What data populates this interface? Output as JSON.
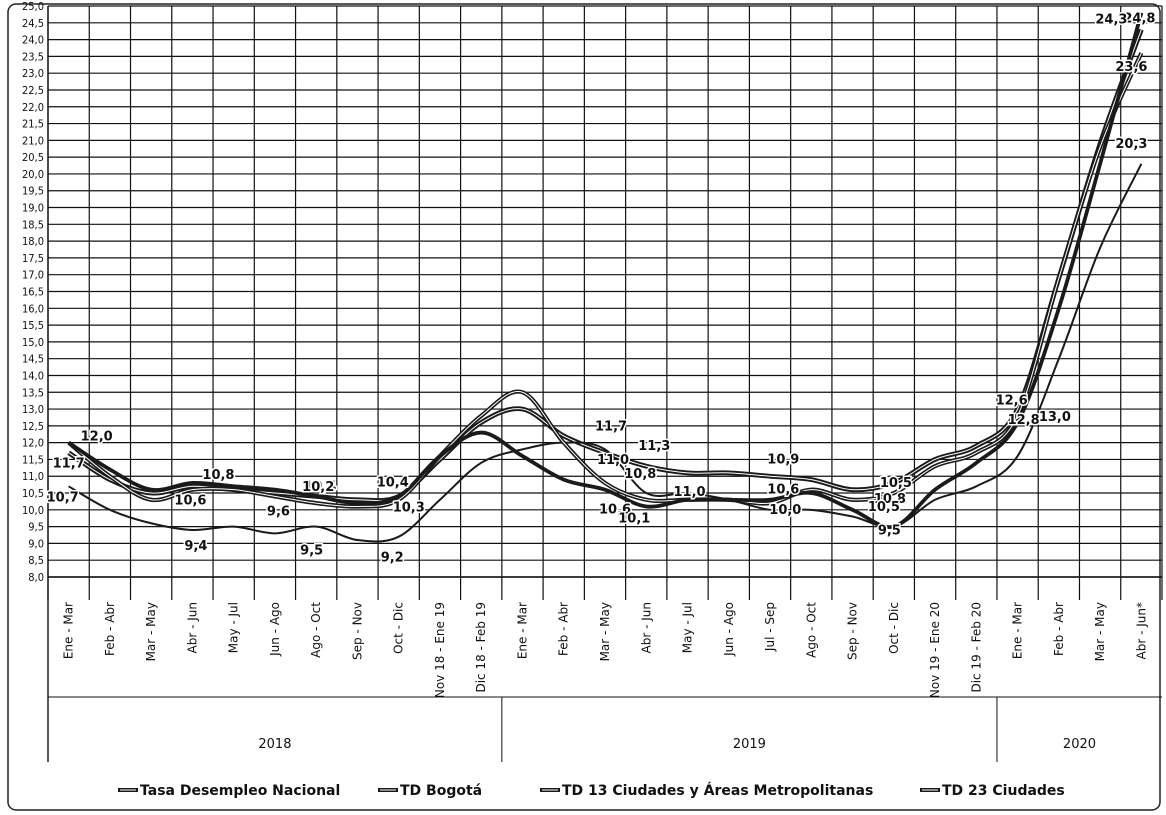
{
  "chart_data": {
    "type": "line",
    "title": "",
    "xlabel": "",
    "ylabel": "",
    "ylim": [
      8.0,
      25.0
    ],
    "y_ticks": [
      "8,0",
      "8,5",
      "9,0",
      "9,5",
      "10,0",
      "10,5",
      "11,0",
      "11,5",
      "12,0",
      "12,5",
      "13,0",
      "13,5",
      "14,0",
      "14,5",
      "15,0",
      "15,5",
      "16,0",
      "16,5",
      "17,0",
      "17,5",
      "18,0",
      "18,5",
      "19,0",
      "19,5",
      "20,0",
      "20,5",
      "21,0",
      "21,5",
      "22,0",
      "22,5",
      "23,0",
      "23,5",
      "24,0",
      "24,5",
      "25,0"
    ],
    "categories": [
      "Ene - Mar",
      "Feb - Abr",
      "Mar - May",
      "Abr - Jun",
      "May - Jul",
      "Jun - Ago",
      "Ago - Oct",
      "Sep - Nov",
      "Oct - Dic",
      "Nov 18 - Ene 19",
      "Dic 18 - Feb 19",
      "Ene - Mar",
      "Feb - Abr",
      "Mar - May",
      "Abr - Jun",
      "May - Jul",
      "Jun - Ago",
      "Jul - Sep",
      "Ago - Oct",
      "Sep - Nov",
      "Oct - Dic",
      "Nov 19 - Ene 20",
      "Dic 19 - Feb 20",
      "Ene - Mar",
      "Feb - Abr",
      "Mar - May",
      "Abr - Jun*"
    ],
    "year_groups": [
      {
        "label": "2018",
        "start": 0,
        "end": 10
      },
      {
        "label": "2019",
        "start": 11,
        "end": 22
      },
      {
        "label": "2020",
        "start": 23,
        "end": 26
      }
    ],
    "series": [
      {
        "name": "Tasa Desempleo Nacional",
        "values": [
          11.7,
          10.9,
          10.5,
          10.7,
          10.6,
          10.5,
          10.4,
          10.3,
          10.4,
          11.5,
          12.6,
          13.0,
          12.2,
          11.7,
          11.3,
          11.1,
          11.1,
          11.0,
          10.9,
          10.6,
          10.8,
          11.5,
          11.9,
          13.0,
          16.9,
          20.9,
          24.3
        ]
      },
      {
        "name": "TD Bogotá",
        "values": [
          10.7,
          10.0,
          9.6,
          9.4,
          9.5,
          9.3,
          9.5,
          9.1,
          9.2,
          10.3,
          11.4,
          11.8,
          12.0,
          11.8,
          10.5,
          10.5,
          10.3,
          10.0,
          10.0,
          9.8,
          9.5,
          10.3,
          10.7,
          11.6,
          14.5,
          17.8,
          20.3
        ]
      },
      {
        "name": "TD 13 Ciudades y Áreas Metropolitanas",
        "values": [
          12.0,
          11.0,
          10.3,
          10.6,
          10.6,
          10.4,
          10.2,
          10.1,
          10.3,
          11.6,
          12.8,
          13.5,
          12.0,
          10.8,
          10.3,
          10.3,
          10.3,
          10.2,
          10.6,
          10.3,
          10.5,
          11.3,
          11.7,
          12.8,
          16.9,
          20.8,
          23.6
        ]
      },
      {
        "name": "TD 23 Ciudades",
        "values": [
          12.0,
          11.2,
          10.6,
          10.8,
          10.7,
          10.6,
          10.4,
          10.2,
          10.4,
          11.6,
          12.3,
          11.6,
          10.9,
          10.6,
          10.1,
          10.3,
          10.3,
          10.3,
          10.5,
          10.0,
          9.5,
          10.6,
          11.4,
          12.6,
          16.0,
          20.3,
          24.8
        ]
      }
    ],
    "annotations": [
      {
        "text": "12,0",
        "cat": 0,
        "value": 12.0
      },
      {
        "text": "11,7",
        "cat": 0,
        "value": 11.7
      },
      {
        "text": "10,7",
        "cat": 0,
        "value": 10.7
      },
      {
        "text": "10,8",
        "cat": 3,
        "value": 10.8
      },
      {
        "text": "10,6",
        "cat": 3,
        "value": 10.6
      },
      {
        "text": "9,4",
        "cat": 3,
        "value": 9.4
      },
      {
        "text": "10,4",
        "cat": 6,
        "value": 10.4
      },
      {
        "text": "9,6",
        "cat": 5,
        "value": 9.6
      },
      {
        "text": "10,2",
        "cat": 6,
        "value": 10.2
      },
      {
        "text": "9,5",
        "cat": 6,
        "value": 9.5
      },
      {
        "text": "10,4",
        "cat": 8,
        "value": 10.4
      },
      {
        "text": "10,3",
        "cat": 8,
        "value": 10.3
      },
      {
        "text": "9,2",
        "cat": 8,
        "value": 9.2
      },
      {
        "text": "11,7",
        "cat": 13,
        "value": 11.7
      },
      {
        "text": "11,0",
        "cat": 13,
        "value": 11.0
      },
      {
        "text": "10,6",
        "cat": 13,
        "value": 10.6
      },
      {
        "text": "11,3",
        "cat": 14,
        "value": 11.3
      },
      {
        "text": "10,8",
        "cat": 14,
        "value": 10.8
      },
      {
        "text": "11,0",
        "cat": 15,
        "value": 11.0
      },
      {
        "text": "10,1",
        "cat": 14,
        "value": 10.1
      },
      {
        "text": "10,9",
        "cat": 18,
        "value": 10.9
      },
      {
        "text": "10,6",
        "cat": 18,
        "value": 10.6
      },
      {
        "text": "10,0",
        "cat": 18,
        "value": 10.0
      },
      {
        "text": "10,8",
        "cat": 20,
        "value": 10.8
      },
      {
        "text": "10,5",
        "cat": 20,
        "value": 10.5
      },
      {
        "text": "10,5",
        "cat": 20,
        "value": 10.5
      },
      {
        "text": "9,5",
        "cat": 20,
        "value": 9.5
      },
      {
        "text": "12,8",
        "cat": 23,
        "value": 12.8
      },
      {
        "text": "12,6",
        "cat": 23,
        "value": 12.6
      },
      {
        "text": "13,0",
        "cat": 24,
        "value": 13.0
      },
      {
        "text": "24,8",
        "cat": 26,
        "value": 24.8
      },
      {
        "text": "24,3",
        "cat": 26,
        "value": 24.3
      },
      {
        "text": "23,6",
        "cat": 26,
        "value": 23.6
      },
      {
        "text": "20,3",
        "cat": 26,
        "value": 20.3
      }
    ],
    "grid": true,
    "legend": "bottom",
    "legend_entries": [
      "Tasa Desempleo Nacional",
      "TD Bogotá",
      "TD 13 Ciudades y Áreas Metropolitanas",
      "TD 23 Ciudades"
    ],
    "colors": {
      "line": "#1a1a1a",
      "grid": "#111111",
      "background": "#ffffff"
    }
  }
}
